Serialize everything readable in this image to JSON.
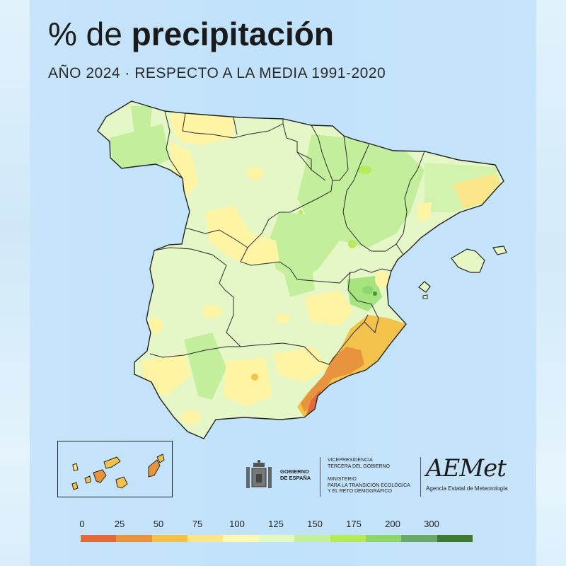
{
  "title": {
    "prefix": "% de ",
    "bold": "precipitación"
  },
  "subtitle": "AÑO 2024 · RESPECTO A LA MEDIA 1991-2020",
  "legend": {
    "labels": [
      "0",
      "25",
      "50",
      "75",
      "100",
      "125",
      "150",
      "175",
      "200",
      "300"
    ],
    "colors": [
      "#e06a3c",
      "#e8943e",
      "#f2c24a",
      "#fbe58a",
      "#fff9b2",
      "#e6f7c4",
      "#c3ef9c",
      "#b6ea58",
      "#8fd66e",
      "#6aa96a",
      "#3f7a35"
    ]
  },
  "logos": {
    "gobierno": [
      "GOBIERNO",
      "DE ESPAÑA"
    ],
    "vicepresidencia": [
      "VICEPRESIDENCIA",
      "TERCERA DEL GOBIERNO"
    ],
    "ministerio": [
      "MINISTERIO",
      "PARA LA TRANSICIÓN ECOLÓGICA",
      "Y EL RETO DEMOGRÁFICO"
    ],
    "aemet": "AEMet",
    "aemet_sub": "Agencia Estatal de Meteorología"
  }
}
